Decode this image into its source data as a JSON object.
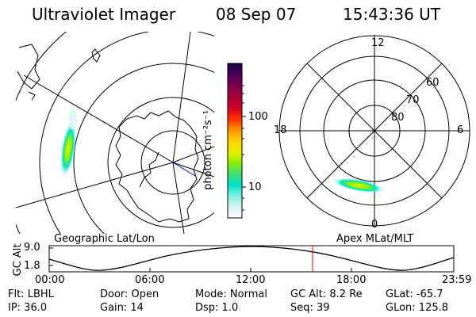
{
  "header": {
    "instrument": "Ultraviolet Imager",
    "date": "08 Sep 07",
    "time": "15:43:36 UT"
  },
  "geo_panel": {
    "label": "Geographic Lat/Lon"
  },
  "mag_panel": {
    "label": "Apex  MLat/MLT",
    "mlt_labels": {
      "top": "12",
      "left": "18",
      "right": "6",
      "bottom": "0"
    },
    "lat_labels": [
      "60",
      "70",
      "80"
    ]
  },
  "colorbar": {
    "unit_label": "photon cm⁻²s⁻¹",
    "ticks": [
      "100",
      "10"
    ],
    "colors": [
      "#ffffff",
      "#d8f4f0",
      "#7ff2e4",
      "#00e0c8",
      "#3fe070",
      "#8ff000",
      "#e8f000",
      "#ffd000",
      "#ff9000",
      "#ff2a00",
      "#d0002a",
      "#a8003a",
      "#7c0050",
      "#4a0058",
      "#1c0040"
    ]
  },
  "timeline": {
    "y_axis_label": "GC Alt",
    "y_ticks": [
      "9.0",
      "1.8"
    ],
    "x_ticks": [
      "00:00",
      "06:00",
      "12:00",
      "18:00",
      "23:59"
    ],
    "current_marker_color": "#ff0000"
  },
  "status": {
    "filter": "Flt: LBHL",
    "ip": "IP: 36.0",
    "door": "Door: Open",
    "gain": "Gain: 14",
    "mode": "Mode: Normal",
    "dsp": "Dsp:    1.0",
    "gc_alt": "GC Alt: 8.2 Re",
    "seq": "Seq: 39",
    "glat": "GLat: -65.7",
    "glon": "GLon: 125.8"
  }
}
